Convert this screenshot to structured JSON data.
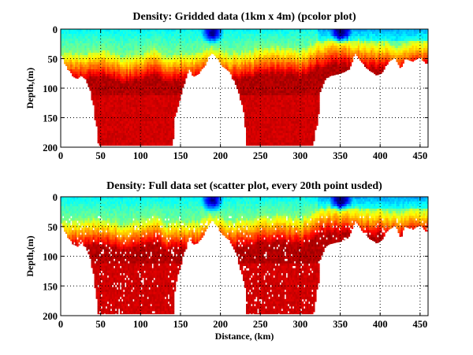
{
  "chart_data": [
    {
      "type": "heatmap",
      "title": "Density: Gridded data (1km x 4m) (pcolor plot)",
      "xlabel": "",
      "ylabel": "Depth,(m)",
      "xlim": [
        0,
        460
      ],
      "ylim": [
        200,
        0
      ],
      "xticks": [
        "0",
        "50",
        "100",
        "150",
        "200",
        "250",
        "300",
        "350",
        "400",
        "450"
      ],
      "yticks": [
        "0",
        "50",
        "100",
        "150",
        "200"
      ],
      "grid": "dotted",
      "colormap": "jet",
      "note": "colors show relative density: blue = low near surface, red = high at depth",
      "coverage_bottom_depth": {
        "x": [
          0,
          5,
          10,
          15,
          20,
          25,
          30,
          35,
          40,
          44,
          46,
          60,
          100,
          140,
          142,
          150,
          160,
          165,
          170,
          175,
          180,
          185,
          189,
          195,
          200,
          210,
          220,
          230,
          232,
          240,
          250,
          280,
          300,
          315,
          320,
          325,
          330,
          335,
          340,
          350,
          360,
          368,
          375,
          385,
          395,
          400,
          410,
          418,
          425,
          430,
          440,
          445,
          450,
          455,
          460
        ],
        "depth": [
          45,
          60,
          72,
          80,
          84,
          78,
          85,
          100,
          130,
          170,
          197,
          197,
          197,
          197,
          150,
          110,
          68,
          80,
          78,
          70,
          60,
          45,
          40,
          50,
          62,
          72,
          100,
          150,
          197,
          197,
          197,
          197,
          197,
          197,
          160,
          100,
          85,
          80,
          78,
          75,
          68,
          40,
          55,
          70,
          78,
          75,
          55,
          48,
          68,
          50,
          55,
          50,
          48,
          58,
          58
        ]
      },
      "surface_layer_depth": {
        "x": [
          0,
          20,
          50,
          80,
          100,
          120,
          130,
          150,
          170,
          189,
          210,
          240,
          270,
          300,
          320,
          340,
          360,
          380,
          400,
          420,
          440,
          460
        ],
        "depth": [
          40,
          40,
          35,
          45,
          40,
          30,
          45,
          40,
          40,
          30,
          40,
          35,
          30,
          35,
          20,
          15,
          15,
          20,
          20,
          25,
          20,
          20
        ]
      },
      "low_density_patches": [
        {
          "x": 189,
          "depth": 5,
          "label": "dark blue minimum"
        },
        {
          "x": 350,
          "depth": 5,
          "label": "blue patch"
        }
      ]
    },
    {
      "type": "scatter",
      "title": "Density: Full data set (scatter plot, every 20th point usded)",
      "xlabel": "Distance, (km)",
      "ylabel": "Depth,(m)",
      "xlim": [
        0,
        460
      ],
      "ylim": [
        200,
        0
      ],
      "xticks": [
        "0",
        "50",
        "100",
        "150",
        "200",
        "250",
        "300",
        "350",
        "400",
        "450"
      ],
      "yticks": [
        "0",
        "50",
        "100",
        "150",
        "200"
      ],
      "grid": "dotted",
      "colormap": "jet",
      "note": "same section as above, scattered points with white gaps"
    }
  ]
}
